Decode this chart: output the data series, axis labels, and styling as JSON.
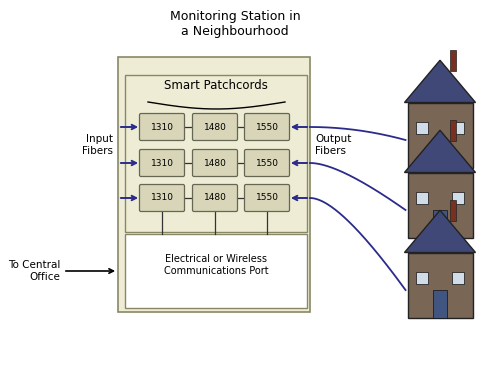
{
  "title": "Monitoring Station in\na Neighbourhood",
  "smart_patchcords_label": "Smart Patchcords",
  "comm_label": "Electrical or Wireless\nCommunications Port",
  "input_label": "Input\nFibers",
  "output_label": "Output\nFibers",
  "central_office_label": "To Central\nOffice",
  "row_values": [
    "1310",
    "1480",
    "1550"
  ],
  "box_bg": "#eeecd5",
  "cell_bg": "#d8d5b8",
  "comm_bg": "#ffffff",
  "line_color": "#2b2b8c",
  "dark_line": "#333355",
  "background_color": "#ffffff",
  "house_body_color": "#7a6655",
  "house_roof_color": "#404878",
  "house_door_color": "#405580",
  "house_chimney_color": "#7a3020",
  "house_window_color": "#d0dde8"
}
